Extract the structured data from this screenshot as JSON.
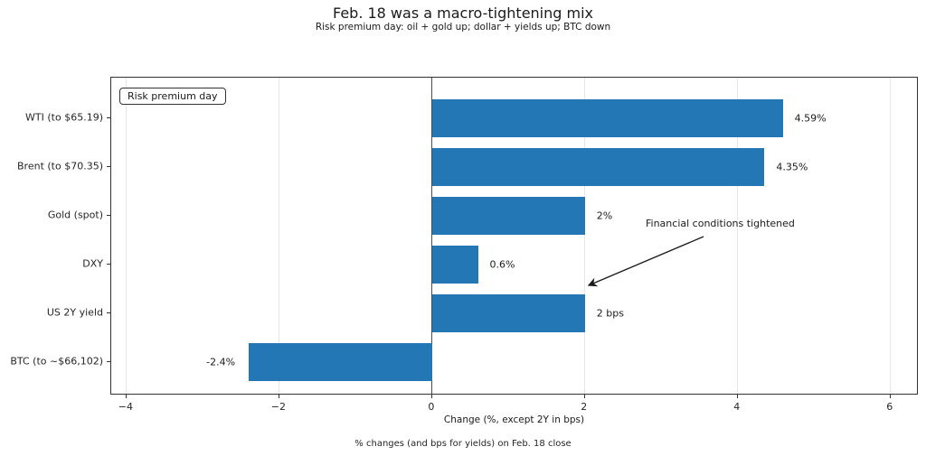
{
  "title": "Feb. 18 was a macro-tightening mix",
  "subtitle": "Risk premium day: oil + gold up; dollar + yields up; BTC down",
  "legend": {
    "label": "Risk premium day"
  },
  "annotation": {
    "text": "Financial conditions tightened"
  },
  "x_axis_label": "Change (%, except 2Y in bps)",
  "footnote": "% changes (and bps for yields) on Feb. 18 close",
  "colors": {
    "bar": "#2277b4",
    "grid": "#e7e7e7",
    "zero_line": "#4d4d4d",
    "spine": "#333333",
    "text": "#1a1a1a"
  },
  "chart_data": {
    "type": "bar",
    "orientation": "horizontal",
    "title": "Feb. 18 was a macro-tightening mix",
    "subtitle": "Risk premium day: oil + gold up; dollar + yields up; BTC down",
    "categories": [
      "WTI (to $65.19)",
      "Brent (to $70.35)",
      "Gold (spot)",
      "DXY",
      "US 2Y yield",
      "BTC (to ~$66,102)"
    ],
    "values": [
      4.59,
      4.35,
      2.0,
      0.6,
      2.0,
      -2.4
    ],
    "value_labels": [
      "4.59%",
      "4.35%",
      "2%",
      "0.6%",
      "2 bps",
      "-2.4%"
    ],
    "xlabel": "Change (%, except 2Y in bps)",
    "xlim": [
      -4.2,
      6.37
    ],
    "xticks": [
      -4,
      -2,
      0,
      2,
      4,
      6
    ],
    "xtick_labels": [
      "−4",
      "−2",
      "0",
      "2",
      "4",
      "6"
    ],
    "grid": true,
    "zero_line": true,
    "legend_position": "upper left",
    "legend_label": "Risk premium day",
    "annotation": "Financial conditions tightened",
    "footnote": "% changes (and bps for yields) on Feb. 18 close"
  }
}
